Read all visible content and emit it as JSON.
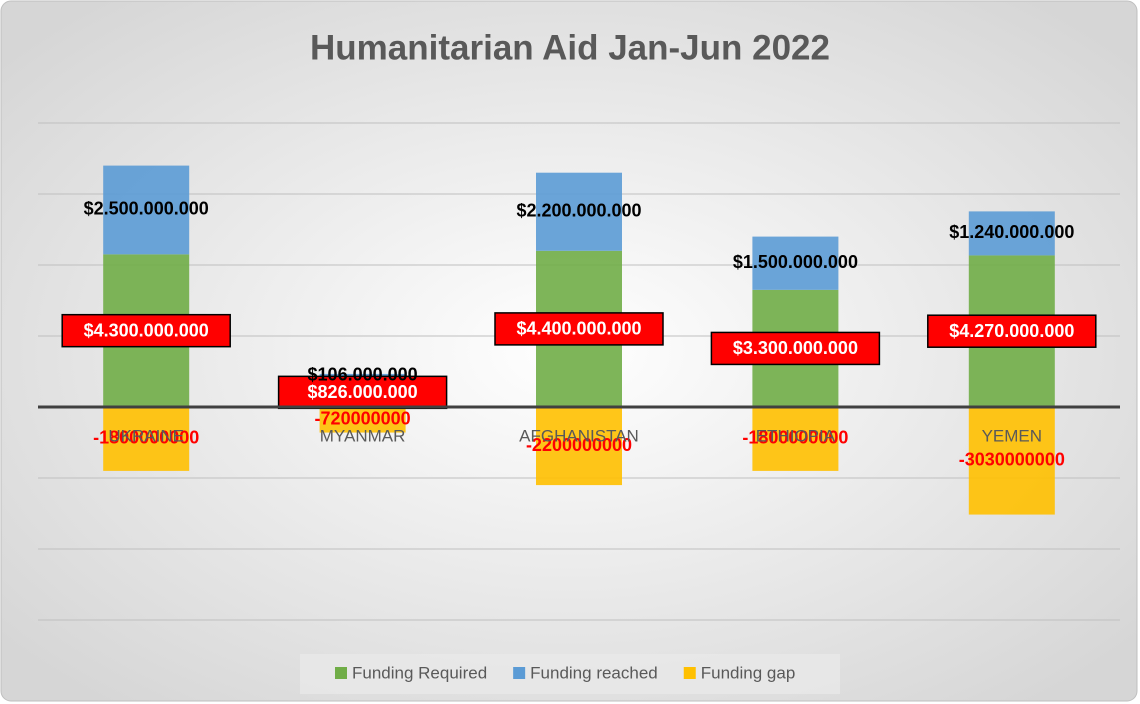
{
  "chart_data": {
    "type": "bar",
    "stacked": true,
    "title": "Humanitarian Aid Jan-Jun 2022",
    "categories": [
      "UKRAINE",
      "MYANMAR",
      "AFGHANISTAN",
      "ETHIOPIA",
      "YEMEN"
    ],
    "series": [
      {
        "name": "Funding Required",
        "color": "#70ad47",
        "values": [
          4300000000,
          826000000,
          4400000000,
          3300000000,
          4270000000
        ],
        "value_labels": [
          "$4.300.000.000",
          "$826.000.000",
          "$4.400.000.000",
          "$3.300.000.000",
          "$4.270.000.000"
        ]
      },
      {
        "name": "Funding reached",
        "color": "#5b9bd5",
        "values": [
          2500000000,
          106000000,
          2200000000,
          1500000000,
          1240000000
        ],
        "value_labels": [
          "$2.500.000.000",
          "$106.000.000",
          "$2.200.000.000",
          "$1.500.000.000",
          "$1.240.000.000"
        ]
      },
      {
        "name": "Funding gap",
        "color": "#ffc000",
        "values": [
          -1800000000,
          -720000000,
          -2200000000,
          -1800000000,
          -3030000000
        ]
      }
    ],
    "ylim": [
      -6000000000,
      8000000000
    ],
    "yticks": [
      -6000000000,
      -4000000000,
      -2000000000,
      0,
      2000000000,
      4000000000,
      6000000000,
      8000000000
    ],
    "grid": true,
    "legend": "bottom"
  }
}
